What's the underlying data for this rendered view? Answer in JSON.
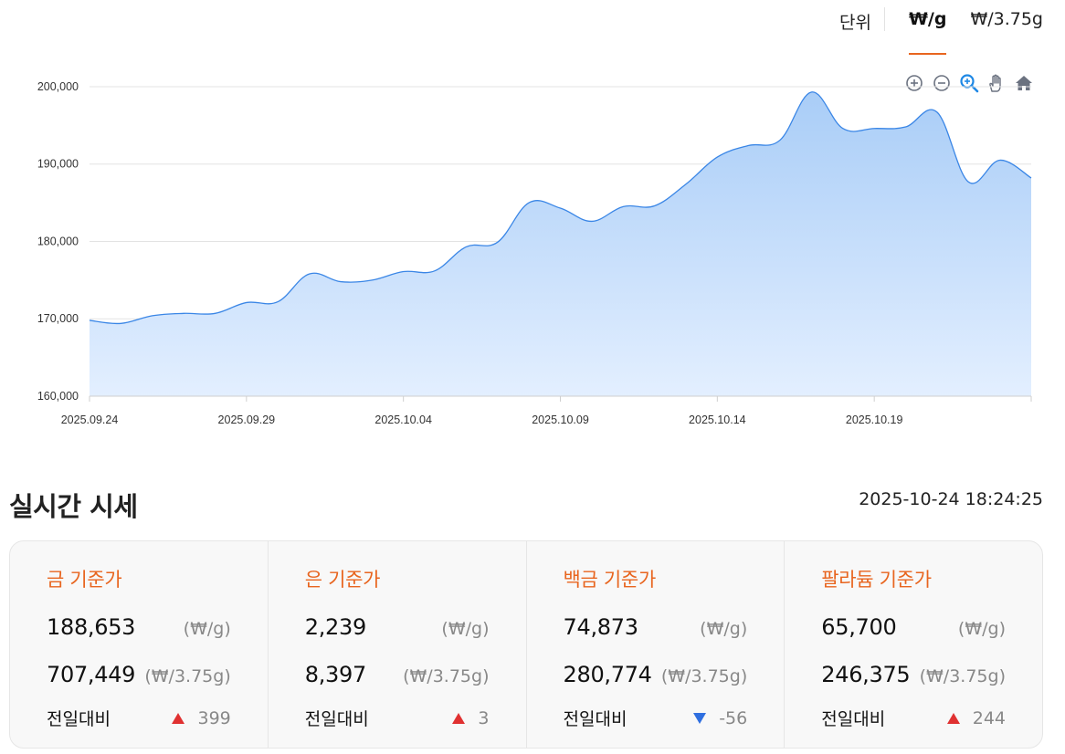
{
  "unit_bar": {
    "label": "단위",
    "tabs": [
      {
        "label": "₩/g",
        "active": true
      },
      {
        "label": "₩/3.75g",
        "active": false
      }
    ]
  },
  "toolbar": {
    "icons": [
      "zoom-in-icon",
      "zoom-out-icon",
      "magnifier-zoom-icon",
      "pan-hand-icon",
      "home-reset-icon"
    ],
    "icon_color": "#6b7280",
    "active_icon_color": "#1e88e5"
  },
  "chart_data": {
    "type": "area",
    "title": "",
    "xlabel": "",
    "ylabel": "",
    "x": [
      "2025.09.24",
      "2025.09.25",
      "2025.09.26",
      "2025.09.27",
      "2025.09.28",
      "2025.09.29",
      "2025.09.30",
      "2025.10.01",
      "2025.10.02",
      "2025.10.03",
      "2025.10.04",
      "2025.10.05",
      "2025.10.06",
      "2025.10.07",
      "2025.10.08",
      "2025.10.09",
      "2025.10.10",
      "2025.10.11",
      "2025.10.12",
      "2025.10.13",
      "2025.10.14",
      "2025.10.15",
      "2025.10.16",
      "2025.10.17",
      "2025.10.18",
      "2025.10.19",
      "2025.10.20",
      "2025.10.21",
      "2025.10.22",
      "2025.10.23",
      "2025.10.24"
    ],
    "series": [
      {
        "values": [
          169800,
          169400,
          170400,
          170700,
          170700,
          172100,
          172200,
          175800,
          174800,
          175000,
          176100,
          176200,
          179300,
          179900,
          185000,
          184300,
          182600,
          184500,
          184600,
          187400,
          190900,
          192400,
          193100,
          199300,
          194600,
          194600,
          194800,
          196700,
          187700,
          190500,
          188200
        ]
      }
    ],
    "x_ticks": [
      "2025.09.24",
      "2025.09.29",
      "2025.10.04",
      "2025.10.09",
      "2025.10.14",
      "2025.10.19"
    ],
    "y_ticks": [
      "200,000",
      "190,000",
      "180,000",
      "170,000",
      "160,000"
    ],
    "ylim": [
      160000,
      202000
    ],
    "grid": true,
    "line_color": "#3a86e6",
    "fill_top_color": "#a9cdf7",
    "fill_bottom_color": "#e3efff"
  },
  "realtime": {
    "title": "실시간 시세",
    "timestamp": "2025-10-24 18:24:25",
    "change_label": "전일대비",
    "items": [
      {
        "name": "금 기준가",
        "price_g": "188,653",
        "unit_g": "(₩/g)",
        "price_375": "707,449",
        "unit_375": "(₩/3.75g)",
        "change": "399",
        "direction": "up"
      },
      {
        "name": "은 기준가",
        "price_g": "2,239",
        "unit_g": "(₩/g)",
        "price_375": "8,397",
        "unit_375": "(₩/3.75g)",
        "change": "3",
        "direction": "up"
      },
      {
        "name": "백금 기준가",
        "price_g": "74,873",
        "unit_g": "(₩/g)",
        "price_375": "280,774",
        "unit_375": "(₩/3.75g)",
        "change": "-56",
        "direction": "down"
      },
      {
        "name": "팔라듐 기준가",
        "price_g": "65,700",
        "unit_g": "(₩/g)",
        "price_375": "246,375",
        "unit_375": "(₩/3.75g)",
        "change": "244",
        "direction": "up"
      }
    ],
    "accent_color": "#e8651f",
    "up_color": "#e03131",
    "down_color": "#2f6fe0"
  }
}
